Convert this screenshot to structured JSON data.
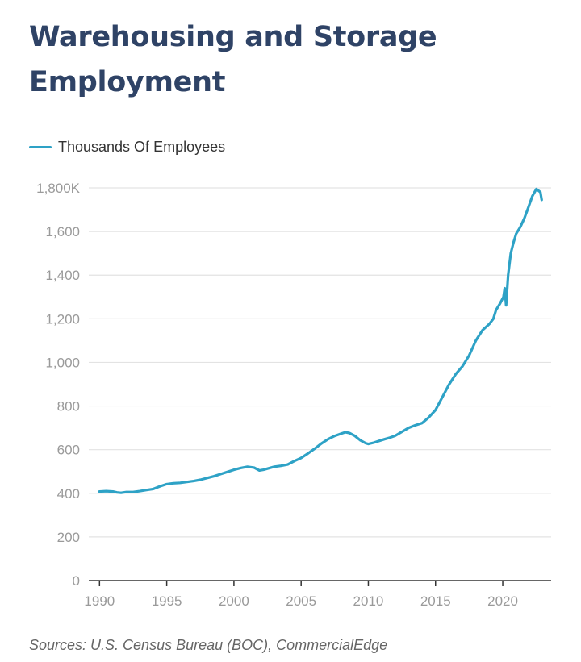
{
  "header": {
    "title": "Warehousing and Storage Employment"
  },
  "footer": {
    "source": "Sources: U.S. Census Bureau (BOC), CommercialEdge"
  },
  "colors": {
    "series": "#2ea2c6",
    "grid": "#e3e3e3",
    "axis": "#333333",
    "title": "#2f4366"
  },
  "chart_data": {
    "type": "line",
    "title": "Warehousing and Storage Employment",
    "xlabel": "",
    "ylabel": "",
    "xlim": [
      1989.2,
      2023.6
    ],
    "ylim": [
      0,
      1800
    ],
    "grid": "horizontal",
    "legend_position": "top-left",
    "x_ticks": [
      1990,
      1995,
      2000,
      2005,
      2010,
      2015,
      2020
    ],
    "x_tick_labels": [
      "1990",
      "1995",
      "2000",
      "2005",
      "2010",
      "2015",
      "2020"
    ],
    "y_ticks": [
      0,
      200,
      400,
      600,
      800,
      1000,
      1200,
      1400,
      1600,
      1800
    ],
    "y_tick_labels": [
      "0",
      "200",
      "400",
      "600",
      "800",
      "1,000",
      "1,200",
      "1,400",
      "1,600",
      "1,800K"
    ],
    "series": [
      {
        "name": "Thousands Of Employees",
        "points": [
          [
            1990.0,
            408
          ],
          [
            1990.5,
            410
          ],
          [
            1991.0,
            408
          ],
          [
            1991.3,
            404
          ],
          [
            1991.6,
            402
          ],
          [
            1992.0,
            406
          ],
          [
            1992.5,
            406
          ],
          [
            1993.0,
            410
          ],
          [
            1993.5,
            415
          ],
          [
            1994.0,
            420
          ],
          [
            1994.5,
            432
          ],
          [
            1995.0,
            442
          ],
          [
            1995.5,
            446
          ],
          [
            1996.0,
            448
          ],
          [
            1996.5,
            452
          ],
          [
            1997.0,
            456
          ],
          [
            1997.5,
            462
          ],
          [
            1998.0,
            470
          ],
          [
            1998.5,
            478
          ],
          [
            1999.0,
            488
          ],
          [
            1999.5,
            498
          ],
          [
            2000.0,
            508
          ],
          [
            2000.5,
            516
          ],
          [
            2001.0,
            522
          ],
          [
            2001.5,
            518
          ],
          [
            2001.9,
            505
          ],
          [
            2002.2,
            508
          ],
          [
            2002.6,
            515
          ],
          [
            2003.0,
            522
          ],
          [
            2003.5,
            526
          ],
          [
            2004.0,
            532
          ],
          [
            2004.5,
            548
          ],
          [
            2005.0,
            562
          ],
          [
            2005.5,
            582
          ],
          [
            2006.0,
            604
          ],
          [
            2006.5,
            628
          ],
          [
            2007.0,
            648
          ],
          [
            2007.5,
            663
          ],
          [
            2008.0,
            674
          ],
          [
            2008.3,
            680
          ],
          [
            2008.6,
            676
          ],
          [
            2009.0,
            663
          ],
          [
            2009.4,
            643
          ],
          [
            2009.8,
            630
          ],
          [
            2010.0,
            626
          ],
          [
            2010.4,
            632
          ],
          [
            2010.8,
            640
          ],
          [
            2011.2,
            648
          ],
          [
            2011.6,
            655
          ],
          [
            2012.0,
            664
          ],
          [
            2012.5,
            682
          ],
          [
            2013.0,
            700
          ],
          [
            2013.5,
            712
          ],
          [
            2014.0,
            722
          ],
          [
            2014.5,
            748
          ],
          [
            2015.0,
            782
          ],
          [
            2015.5,
            840
          ],
          [
            2016.0,
            898
          ],
          [
            2016.5,
            946
          ],
          [
            2017.0,
            982
          ],
          [
            2017.5,
            1032
          ],
          [
            2018.0,
            1100
          ],
          [
            2018.5,
            1148
          ],
          [
            2019.0,
            1176
          ],
          [
            2019.3,
            1200
          ],
          [
            2019.5,
            1240
          ],
          [
            2019.8,
            1270
          ],
          [
            2020.05,
            1300
          ],
          [
            2020.15,
            1340
          ],
          [
            2020.25,
            1262
          ],
          [
            2020.4,
            1400
          ],
          [
            2020.6,
            1500
          ],
          [
            2020.8,
            1550
          ],
          [
            2021.0,
            1590
          ],
          [
            2021.3,
            1620
          ],
          [
            2021.6,
            1660
          ],
          [
            2021.9,
            1710
          ],
          [
            2022.2,
            1762
          ],
          [
            2022.5,
            1795
          ],
          [
            2022.8,
            1780
          ],
          [
            2022.9,
            1745
          ]
        ]
      }
    ]
  }
}
